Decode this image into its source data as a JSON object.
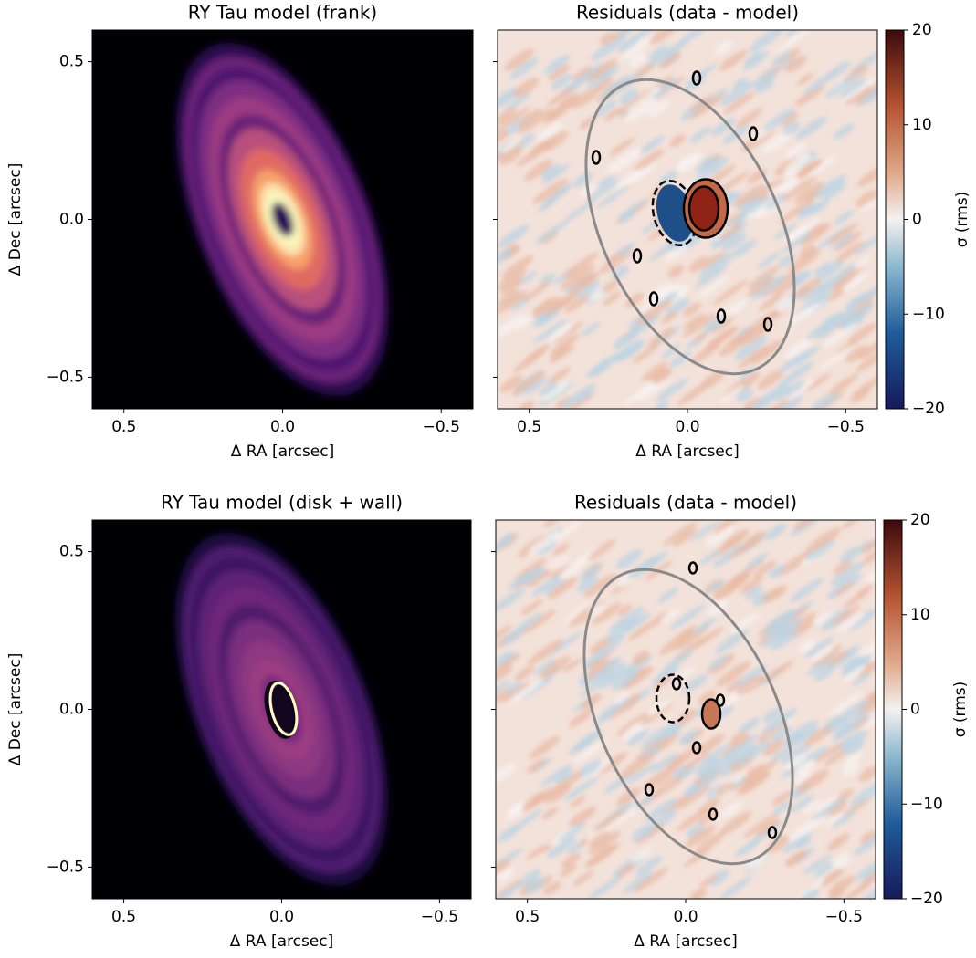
{
  "chart_data": [
    {
      "type": "image",
      "title": "RY Tau model (frank)",
      "xlabel": "Δ RA [arcsec]",
      "ylabel": "Δ Dec [arcsec]",
      "xlim": [
        0.6,
        -0.6
      ],
      "ylim": [
        -0.6,
        0.6
      ],
      "xticks": [
        0.5,
        {
          "value": 0,
          "label": "0.0"
        },
        {
          "value": -0.5,
          "label": "−0.5"
        }
      ],
      "yticks": [
        {
          "value": -0.5,
          "label": "−0.5"
        },
        {
          "value": 0,
          "label": "0.0"
        },
        0.5
      ],
      "cmap": "magma"
    },
    {
      "type": "image",
      "title": "Residuals (data - model)",
      "xlabel": "Δ RA [arcsec]",
      "xlim": [
        0.6,
        -0.6
      ],
      "ylim": [
        -0.6,
        0.6
      ],
      "xticks": [
        0.5,
        {
          "value": 0,
          "label": "0.0"
        },
        {
          "value": -0.5,
          "label": "−0.5"
        }
      ],
      "yticks": [
        -0.5,
        0,
        0.5
      ],
      "cmap": "balance",
      "colorbar": {
        "label": "σ (rms)",
        "lim": [
          -20,
          20
        ],
        "ticks": [
          {
            "value": -20,
            "label": "−20"
          },
          {
            "value": -10,
            "label": "−10"
          },
          0,
          10,
          20
        ]
      }
    },
    {
      "type": "image",
      "title": "RY Tau model (disk + wall)",
      "xlabel": "Δ RA [arcsec]",
      "ylabel": "Δ Dec [arcsec]",
      "xlim": [
        0.6,
        -0.6
      ],
      "ylim": [
        -0.6,
        0.6
      ],
      "xticks": [
        0.5,
        {
          "value": 0,
          "label": "0.0"
        },
        {
          "value": -0.5,
          "label": "−0.5"
        }
      ],
      "yticks": [
        {
          "value": -0.5,
          "label": "−0.5"
        },
        {
          "value": 0,
          "label": "0.0"
        },
        0.5
      ],
      "cmap": "magma"
    },
    {
      "type": "image",
      "title": "Residuals (data - model)",
      "xlabel": "Δ RA [arcsec]",
      "xlim": [
        0.6,
        -0.6
      ],
      "ylim": [
        -0.6,
        0.6
      ],
      "xticks": [
        0.5,
        {
          "value": 0,
          "label": "0.0"
        },
        {
          "value": -0.5,
          "label": "−0.5"
        }
      ],
      "yticks": [
        -0.5,
        0,
        0.5
      ],
      "cmap": "balance",
      "colorbar": {
        "label": "σ (rms)",
        "lim": [
          -20,
          20
        ],
        "ticks": [
          {
            "value": -20,
            "label": "−20"
          },
          {
            "value": -10,
            "label": "−10"
          },
          0,
          10,
          20
        ]
      }
    }
  ]
}
